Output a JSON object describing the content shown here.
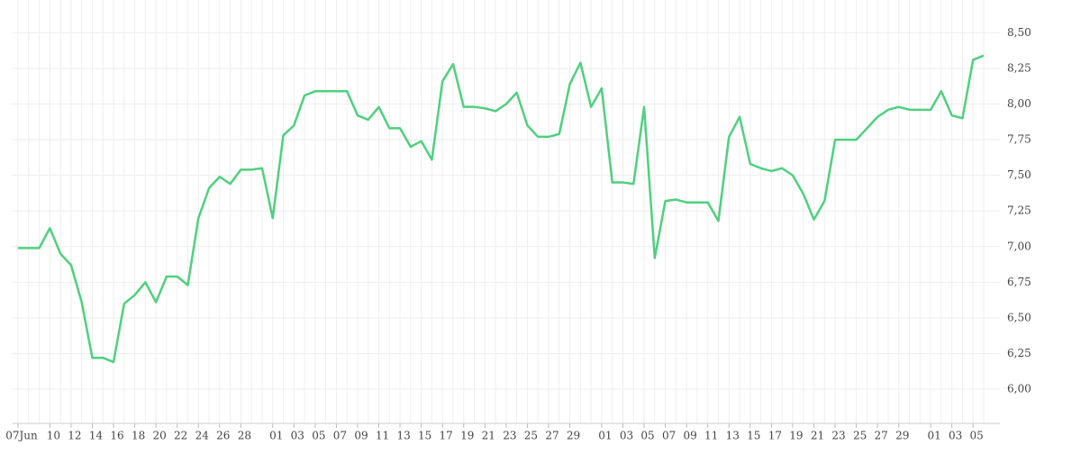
{
  "chart_data": {
    "type": "line",
    "categories": [
      "07Jun",
      null,
      null,
      "10",
      null,
      "12",
      null,
      "14",
      null,
      "16",
      null,
      "18",
      null,
      "20",
      null,
      "22",
      null,
      "24",
      null,
      "26",
      null,
      "28",
      null,
      null,
      "01",
      null,
      "03",
      null,
      "05",
      null,
      "07",
      null,
      "09",
      null,
      "11",
      null,
      "13",
      null,
      "15",
      null,
      "17",
      null,
      "19",
      null,
      "21",
      null,
      "23",
      null,
      "25",
      null,
      "27",
      null,
      "29",
      null,
      null,
      "01",
      null,
      "03",
      null,
      "05",
      null,
      "07",
      null,
      "09",
      null,
      "11",
      null,
      "13",
      null,
      "15",
      null,
      "17",
      null,
      "19",
      null,
      "21",
      null,
      "23",
      null,
      "25",
      null,
      "27",
      null,
      "29",
      null,
      null,
      "01",
      null,
      "03",
      null,
      "05",
      null
    ],
    "series": [
      {
        "color": "#4fd07f",
        "values": [
          6.99,
          6.99,
          6.99,
          7.13,
          6.95,
          6.87,
          6.61,
          6.22,
          6.22,
          6.19,
          6.6,
          6.66,
          6.75,
          6.61,
          6.79,
          6.79,
          6.73,
          7.2,
          7.41,
          7.49,
          7.44,
          7.54,
          7.54,
          7.55,
          7.2,
          7.78,
          7.85,
          8.06,
          8.09,
          8.09,
          8.09,
          8.09,
          7.92,
          7.89,
          7.98,
          7.83,
          7.83,
          7.7,
          7.74,
          7.61,
          8.16,
          8.28,
          7.98,
          7.98,
          7.97,
          7.95,
          8.0,
          8.08,
          7.85,
          7.77,
          7.77,
          7.79,
          8.14,
          8.29,
          7.98,
          8.11,
          7.45,
          7.45,
          7.44,
          7.98,
          6.92,
          7.32,
          7.33,
          7.31,
          7.31,
          7.31,
          7.18,
          7.77,
          7.91,
          7.58,
          7.55,
          7.53,
          7.55,
          7.5,
          7.37,
          7.19,
          7.32,
          7.75,
          7.75,
          7.75,
          7.83,
          7.91,
          7.96,
          7.98,
          7.96,
          7.96,
          7.96,
          8.09,
          7.92,
          7.9,
          8.31,
          8.34
        ]
      }
    ],
    "ylim": [
      5.76,
      8.73
    ],
    "yticks": [
      {
        "value": 6.0,
        "label": "6,00"
      },
      {
        "value": 6.25,
        "label": "6,25"
      },
      {
        "value": 6.5,
        "label": "6,50"
      },
      {
        "value": 6.75,
        "label": "6,75"
      },
      {
        "value": 7.0,
        "label": "7,00"
      },
      {
        "value": 7.25,
        "label": "7,25"
      },
      {
        "value": 7.5,
        "label": "7,50"
      },
      {
        "value": 7.75,
        "label": "7,75"
      },
      {
        "value": 8.0,
        "label": "8,00"
      },
      {
        "value": 8.25,
        "label": "8,25"
      },
      {
        "value": 8.5,
        "label": "8,50"
      }
    ],
    "grid": true
  }
}
